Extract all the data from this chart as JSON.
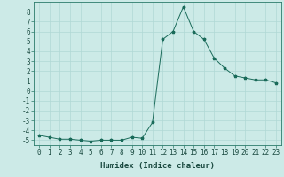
{
  "x": [
    0,
    1,
    2,
    3,
    4,
    5,
    6,
    7,
    8,
    9,
    10,
    11,
    12,
    13,
    14,
    15,
    16,
    17,
    18,
    19,
    20,
    21,
    22,
    23
  ],
  "y": [
    -4.5,
    -4.7,
    -4.9,
    -4.9,
    -5.0,
    -5.1,
    -5.0,
    -5.0,
    -5.0,
    -4.7,
    -4.8,
    -3.2,
    5.2,
    6.0,
    8.5,
    6.0,
    5.2,
    3.3,
    2.3,
    1.5,
    1.3,
    1.1,
    1.1,
    0.8
  ],
  "line_color": "#1a6b5a",
  "marker": "*",
  "background_color": "#cceae7",
  "grid_color": "#b0d8d5",
  "xlabel": "Humidex (Indice chaleur)",
  "ylim": [
    -5.5,
    9.0
  ],
  "xlim": [
    -0.5,
    23.5
  ],
  "yticks": [
    -5,
    -4,
    -3,
    -2,
    -1,
    0,
    1,
    2,
    3,
    4,
    5,
    6,
    7,
    8
  ],
  "xticks": [
    0,
    1,
    2,
    3,
    4,
    5,
    6,
    7,
    8,
    9,
    10,
    11,
    12,
    13,
    14,
    15,
    16,
    17,
    18,
    19,
    20,
    21,
    22,
    23
  ],
  "xlabel_fontsize": 6.5,
  "tick_fontsize": 5.5
}
